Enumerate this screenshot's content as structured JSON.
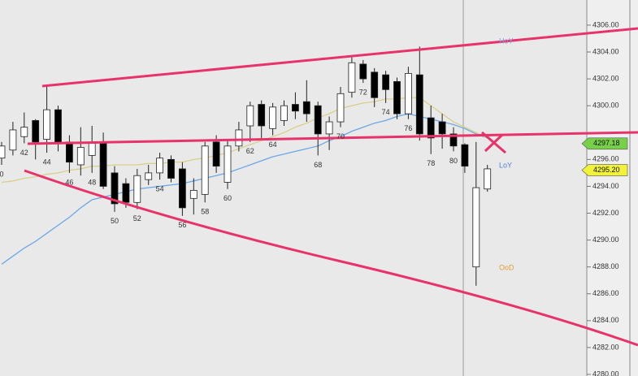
{
  "chart_data": {
    "type": "candlestick",
    "categories": [
      "0",
      null,
      "42",
      null,
      "44",
      null,
      "46",
      null,
      "48",
      null,
      "50",
      null,
      "52",
      null,
      "54",
      null,
      "56",
      null,
      "58",
      null,
      "60",
      null,
      "62",
      null,
      "64",
      null,
      null,
      null,
      "68",
      null,
      "70",
      null,
      "72",
      null,
      "74",
      null,
      "76",
      null,
      "78",
      null,
      "80",
      null,
      null,
      null
    ],
    "open": [
      4296.1,
      4296.7,
      4297.7,
      4298.9,
      4297.5,
      4299.7,
      4297.3,
      4295.6,
      4296.3,
      4297.3,
      4295.0,
      4294.2,
      4292.8,
      4294.5,
      4295.0,
      4296.0,
      4295.3,
      4293.1,
      4293.4,
      4297.3,
      4294.3,
      4297.0,
      4298.5,
      4300.1,
      4298.3,
      4298.9,
      4300.1,
      4300.3,
      4300.0,
      4297.9,
      4298.8,
      4301.0,
      4303.1,
      4302.5,
      4302.3,
      4301.8,
      4299.4,
      4302.3,
      4299.1,
      4298.8,
      4297.9,
      4297.1,
      4288.0,
      4293.8
    ],
    "high": [
      4297.3,
      4298.8,
      4299.5,
      4299.0,
      4301.5,
      4300.0,
      4297.8,
      4298.4,
      4298.5,
      4298.0,
      4295.5,
      4294.6,
      4295.3,
      4295.6,
      4296.5,
      4296.3,
      4295.8,
      4294.6,
      4297.3,
      4297.8,
      4297.4,
      4298.8,
      4300.3,
      4300.4,
      4300.2,
      4300.4,
      4301.0,
      4301.9,
      4300.3,
      4299.2,
      4301.4,
      4303.6,
      4303.4,
      4302.8,
      4302.6,
      4302.1,
      4302.9,
      4304.4,
      4300.0,
      4299.4,
      4298.4,
      4297.2,
      4297.3,
      4295.6
    ],
    "low": [
      4295.6,
      4296.3,
      4297.2,
      4296.0,
      4296.5,
      4296.6,
      4295.0,
      4294.8,
      4295.0,
      4293.8,
      4292.1,
      4292.4,
      4292.3,
      4294.1,
      4294.5,
      4294.3,
      4291.8,
      4291.9,
      4292.8,
      4295.0,
      4293.8,
      4296.6,
      4297.3,
      4297.5,
      4297.8,
      4298.5,
      4299.0,
      4298.8,
      4296.3,
      4296.7,
      4298.4,
      4300.6,
      4301.7,
      4299.9,
      4300.2,
      4299.0,
      4299.0,
      4297.4,
      4296.4,
      4296.8,
      4296.6,
      4295.0,
      4286.6,
      4293.6
    ],
    "close": [
      4297.0,
      4298.2,
      4298.4,
      4297.3,
      4299.7,
      4297.3,
      4295.8,
      4296.9,
      4297.2,
      4294.0,
      4292.7,
      4292.8,
      4294.8,
      4295.0,
      4296.1,
      4294.6,
      4292.4,
      4293.7,
      4297.0,
      4295.5,
      4297.0,
      4298.2,
      4300.0,
      4298.5,
      4299.9,
      4300.0,
      4299.6,
      4299.4,
      4297.9,
      4298.8,
      4300.9,
      4303.2,
      4302.0,
      4300.6,
      4301.2,
      4299.4,
      4302.4,
      4297.9,
      4297.6,
      4297.9,
      4297.0,
      4295.5,
      4293.9,
      4295.3
    ],
    "up_color": "#ffffff",
    "down_color": "#000000",
    "lines": [
      {
        "color": "#6aa7e8",
        "values": [
          4288.2,
          4288.8,
          4289.4,
          4289.9,
          4290.5,
          4291.1,
          4291.7,
          4292.4,
          4293.0,
          4293.2,
          4293.4,
          4293.6,
          4293.8,
          4293.9,
          4294.0,
          4294.1,
          4294.2,
          4294.4,
          4294.6,
          4294.8,
          4295.0,
          4295.3,
          4295.6,
          4295.9,
          4296.2,
          4296.4,
          4296.6,
          4296.8,
          4297.0,
          4297.4,
          4297.7,
          4298.1,
          4298.4,
          4298.7,
          4298.9,
          4299.2,
          4299.4,
          4299.2,
          4299.0,
          4298.8,
          4298.6,
          4298.3,
          4297.9,
          4297.6
        ]
      },
      {
        "color": "#d8d08a",
        "values": [
          4294.3,
          4294.4,
          4294.6,
          4294.7,
          4294.9,
          4295.0,
          4295.2,
          4295.3,
          4295.5,
          4295.5,
          4295.6,
          4295.6,
          4295.6,
          4295.7,
          4295.7,
          4295.8,
          4295.8,
          4296.0,
          4296.1,
          4296.3,
          4296.5,
          4296.8,
          4297.1,
          4297.4,
          4297.7,
          4298.0,
          4298.4,
          4298.7,
          4299.1,
          4299.4,
          4299.8,
          4300.0,
          4300.2,
          4300.3,
          4300.5,
          4300.5,
          4300.6,
          4300.6,
          4300.0,
          4299.4,
          4298.8,
          4298.4,
          4298.0,
          4297.6
        ]
      }
    ],
    "ylim": [
      4279.88,
      4307.87
    ],
    "yticks": [
      {
        "value": 4306,
        "label": "4306.00"
      },
      {
        "value": 4304,
        "label": "4304.00"
      },
      {
        "value": 4302,
        "label": "4302.00"
      },
      {
        "value": 4300,
        "label": "4300.00"
      },
      {
        "value": 4296,
        "label": "4296.00"
      },
      {
        "value": 4294,
        "label": "4294.00"
      },
      {
        "value": 4292,
        "label": "4292.00"
      },
      {
        "value": 4290,
        "label": "4290.00"
      },
      {
        "value": 4288,
        "label": "4288.00"
      },
      {
        "value": 4286,
        "label": "4286.00"
      },
      {
        "value": 4284,
        "label": "4284.00"
      },
      {
        "value": 4282,
        "label": "4282.00"
      },
      {
        "value": 4280,
        "label": "4280.00"
      }
    ],
    "price_labels": [
      {
        "value": 4297.18,
        "label": "4297.18",
        "color": "#78d048"
      },
      {
        "value": 4295.2,
        "label": "4295.20",
        "color": "#f2f23a"
      }
    ],
    "annotations": [
      {
        "text": "HoY",
        "color": "#7f9fd6"
      },
      {
        "text": "LoY",
        "color": "#4f7fd6"
      },
      {
        "text": "OoD",
        "color": "#e0a030"
      }
    ]
  }
}
